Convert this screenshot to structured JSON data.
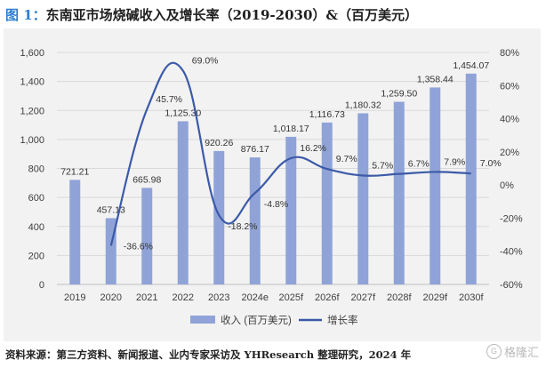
{
  "figure": {
    "number_label": "图 1：",
    "title": "东南亚市场烧碱收入及增长率（2019-2030）&（百万美元）",
    "source": "资料来源：第三方资料、新闻报道、业内专家采访及 YHResearch 整理研究，2024 年",
    "watermark": "格隆汇",
    "watermark_icon": "logo-icon"
  },
  "chart_data": {
    "type": "bar",
    "categories": [
      "2019",
      "2020",
      "2021",
      "2022",
      "2023",
      "2024e",
      "2025f",
      "2026f",
      "2027f",
      "2028f",
      "2029f",
      "2030f"
    ],
    "series": [
      {
        "name": "收入 (百万美元)",
        "type": "bar",
        "axis": "left",
        "color": "#8fa3d8",
        "values": [
          721.21,
          457.13,
          665.98,
          1125.3,
          920.26,
          876.17,
          1018.17,
          1116.73,
          1180.32,
          1259.5,
          1358.44,
          1454.07
        ],
        "labels": [
          "721.21",
          "457.13",
          "665.98",
          "1,125.30",
          "920.26",
          "876.17",
          "1,018.17",
          "1,116.73",
          "1,180.32",
          "1,259.50",
          "1,358.44",
          "1,454.07"
        ]
      },
      {
        "name": "增长率",
        "type": "line",
        "axis": "right",
        "color": "#3b5aa8",
        "x": [
          "2020",
          "2021",
          "2022",
          "2023",
          "2024e",
          "2025f",
          "2026f",
          "2027f",
          "2028f",
          "2029f",
          "2030f"
        ],
        "values": [
          -36.6,
          45.7,
          69.0,
          -18.2,
          -4.8,
          16.2,
          9.7,
          5.7,
          6.7,
          7.9,
          7.0
        ],
        "labels": [
          "-36.6%",
          "45.7%",
          "69.0%",
          "-18.2%",
          "-4.8%",
          "16.2%",
          "9.7%",
          "5.7%",
          "6.7%",
          "7.9%",
          "7.0%"
        ]
      }
    ],
    "y_left": {
      "lim": [
        0,
        1600
      ],
      "ticks": [
        "0",
        "200",
        "400",
        "600",
        "800",
        "1,000",
        "1,200",
        "1,400",
        "1,600"
      ]
    },
    "y_right": {
      "lim": [
        -60,
        80
      ],
      "ticks": [
        "-60%",
        "-40%",
        "-20%",
        "0%",
        "20%",
        "40%",
        "60%",
        "80%"
      ]
    },
    "grid": "horizontal",
    "legend_position": "bottom"
  }
}
